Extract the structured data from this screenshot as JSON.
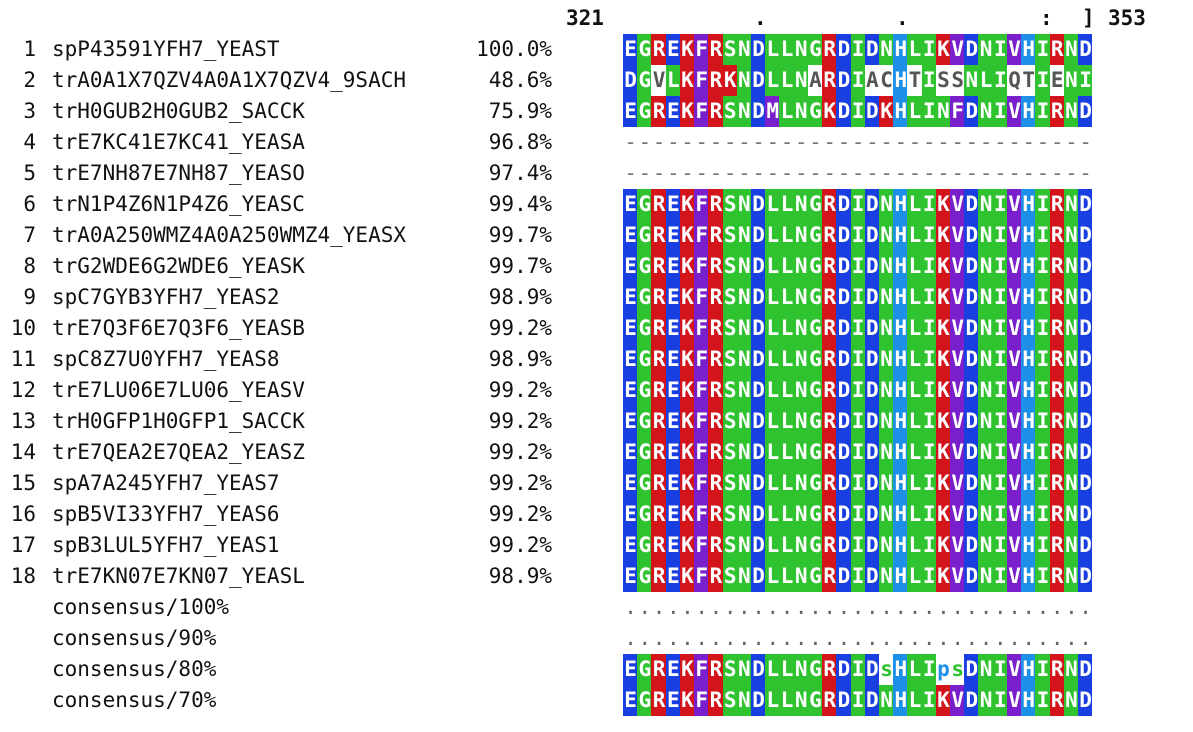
{
  "ruler": {
    "start": "321",
    "mark1": ".",
    "mark2": ".",
    "mark3": ":",
    "bracket": "]",
    "end": "353"
  },
  "colors": {
    "E": "#1a3fe0",
    "D": "#1a3fe0",
    "G": "#2fc32f",
    "N": "#2fc32f",
    "Q": "#2fc32f",
    "S": "#2fc32f",
    "T": "#2fc32f",
    "R": "#d3151b",
    "K": "#d3151b",
    "F": "#7a1fcc",
    "L": "#2fc32f",
    "I": "#2fc32f",
    "V": "#7a1fcc",
    "M": "#7a1fcc",
    "H": "#1e90e8",
    "A": "#2fc32f",
    "C": "#2fc32f"
  },
  "rows": [
    {
      "num": "1",
      "name": "spP43591YFH7_YEAST",
      "pct": "100.0%",
      "seq": "EGREKFRSNDLLNGRDIDNHLIKVDNIVHIRND"
    },
    {
      "num": "2",
      "name": "trA0A1X7QZV4A0A1X7QZV4_9SACH",
      "pct": "48.6%",
      "seq": "DGVLKFRKNDLLNARDIACHTISSNLIQTIENI"
    },
    {
      "num": "3",
      "name": "trH0GUB2H0GUB2_SACCK",
      "pct": "75.9%",
      "seq": "EGREKFRSNDMLNGKDIDKHLINFDNIVHIRND"
    },
    {
      "num": "4",
      "name": "trE7KC41E7KC41_YEASA",
      "pct": "96.8%",
      "seq": "---------------------------------"
    },
    {
      "num": "5",
      "name": "trE7NH87E7NH87_YEASO",
      "pct": "97.4%",
      "seq": "---------------------------------"
    },
    {
      "num": "6",
      "name": "trN1P4Z6N1P4Z6_YEASC",
      "pct": "99.4%",
      "seq": "EGREKFRSNDLLNGRDIDNHLIKVDNIVHIRND"
    },
    {
      "num": "7",
      "name": "trA0A250WMZ4A0A250WMZ4_YEASX",
      "pct": "99.7%",
      "seq": "EGREKFRSNDLLNGRDIDNHLIKVDNIVHIRND"
    },
    {
      "num": "8",
      "name": "trG2WDE6G2WDE6_YEASK",
      "pct": "99.7%",
      "seq": "EGREKFRSNDLLNGRDIDNHLIKVDNIVHIRND"
    },
    {
      "num": "9",
      "name": "spC7GYB3YFH7_YEAS2",
      "pct": "98.9%",
      "seq": "EGREKFRSNDLLNGRDIDNHLIKVDNIVHIRND"
    },
    {
      "num": "10",
      "name": "trE7Q3F6E7Q3F6_YEASB",
      "pct": "99.2%",
      "seq": "EGREKFRSNDLLNGRDIDNHLIKVDNIVHIRND"
    },
    {
      "num": "11",
      "name": "spC8Z7U0YFH7_YEAS8",
      "pct": "98.9%",
      "seq": "EGREKFRSNDLLNGRDIDNHLIKVDNIVHIRND"
    },
    {
      "num": "12",
      "name": "trE7LU06E7LU06_YEASV",
      "pct": "99.2%",
      "seq": "EGREKFRSNDLLNGRDIDNHLIKVDNIVHIRND"
    },
    {
      "num": "13",
      "name": "trH0GFP1H0GFP1_SACCK",
      "pct": "99.2%",
      "seq": "EGREKFRSNDLLNGRDIDNHLIKVDNIVHIRND"
    },
    {
      "num": "14",
      "name": "trE7QEA2E7QEA2_YEASZ",
      "pct": "99.2%",
      "seq": "EGREKFRSNDLLNGRDIDNHLIKVDNIVHIRND"
    },
    {
      "num": "15",
      "name": "spA7A245YFH7_YEAS7",
      "pct": "99.2%",
      "seq": "EGREKFRSNDLLNGRDIDNHLIKVDNIVHIRND"
    },
    {
      "num": "16",
      "name": "spB5VI33YFH7_YEAS6",
      "pct": "99.2%",
      "seq": "EGREKFRSNDLLNGRDIDNHLIKVDNIVHIRND"
    },
    {
      "num": "17",
      "name": "spB3LUL5YFH7_YEAS1",
      "pct": "99.2%",
      "seq": "EGREKFRSNDLLNGRDIDNHLIKVDNIVHIRND"
    },
    {
      "num": "18",
      "name": "trE7KN07E7KN07_YEASL",
      "pct": "98.9%",
      "seq": "EGREKFRSNDLLNGRDIDNHLIKVDNIVHIRND"
    },
    {
      "num": "",
      "name": "consensus/100%",
      "pct": "",
      "seq": "................................."
    },
    {
      "num": "",
      "name": "consensus/90%",
      "pct": "",
      "seq": "................................."
    },
    {
      "num": "",
      "name": "consensus/80%",
      "pct": "",
      "seq": "EGREKFRSNDLLNGRDIDsHLIpsDNIVHIRND"
    },
    {
      "num": "",
      "name": "consensus/70%",
      "pct": "",
      "seq": "EGREKFRSNDLLNGRDIDNHLIKVDNIVHIRND"
    }
  ]
}
